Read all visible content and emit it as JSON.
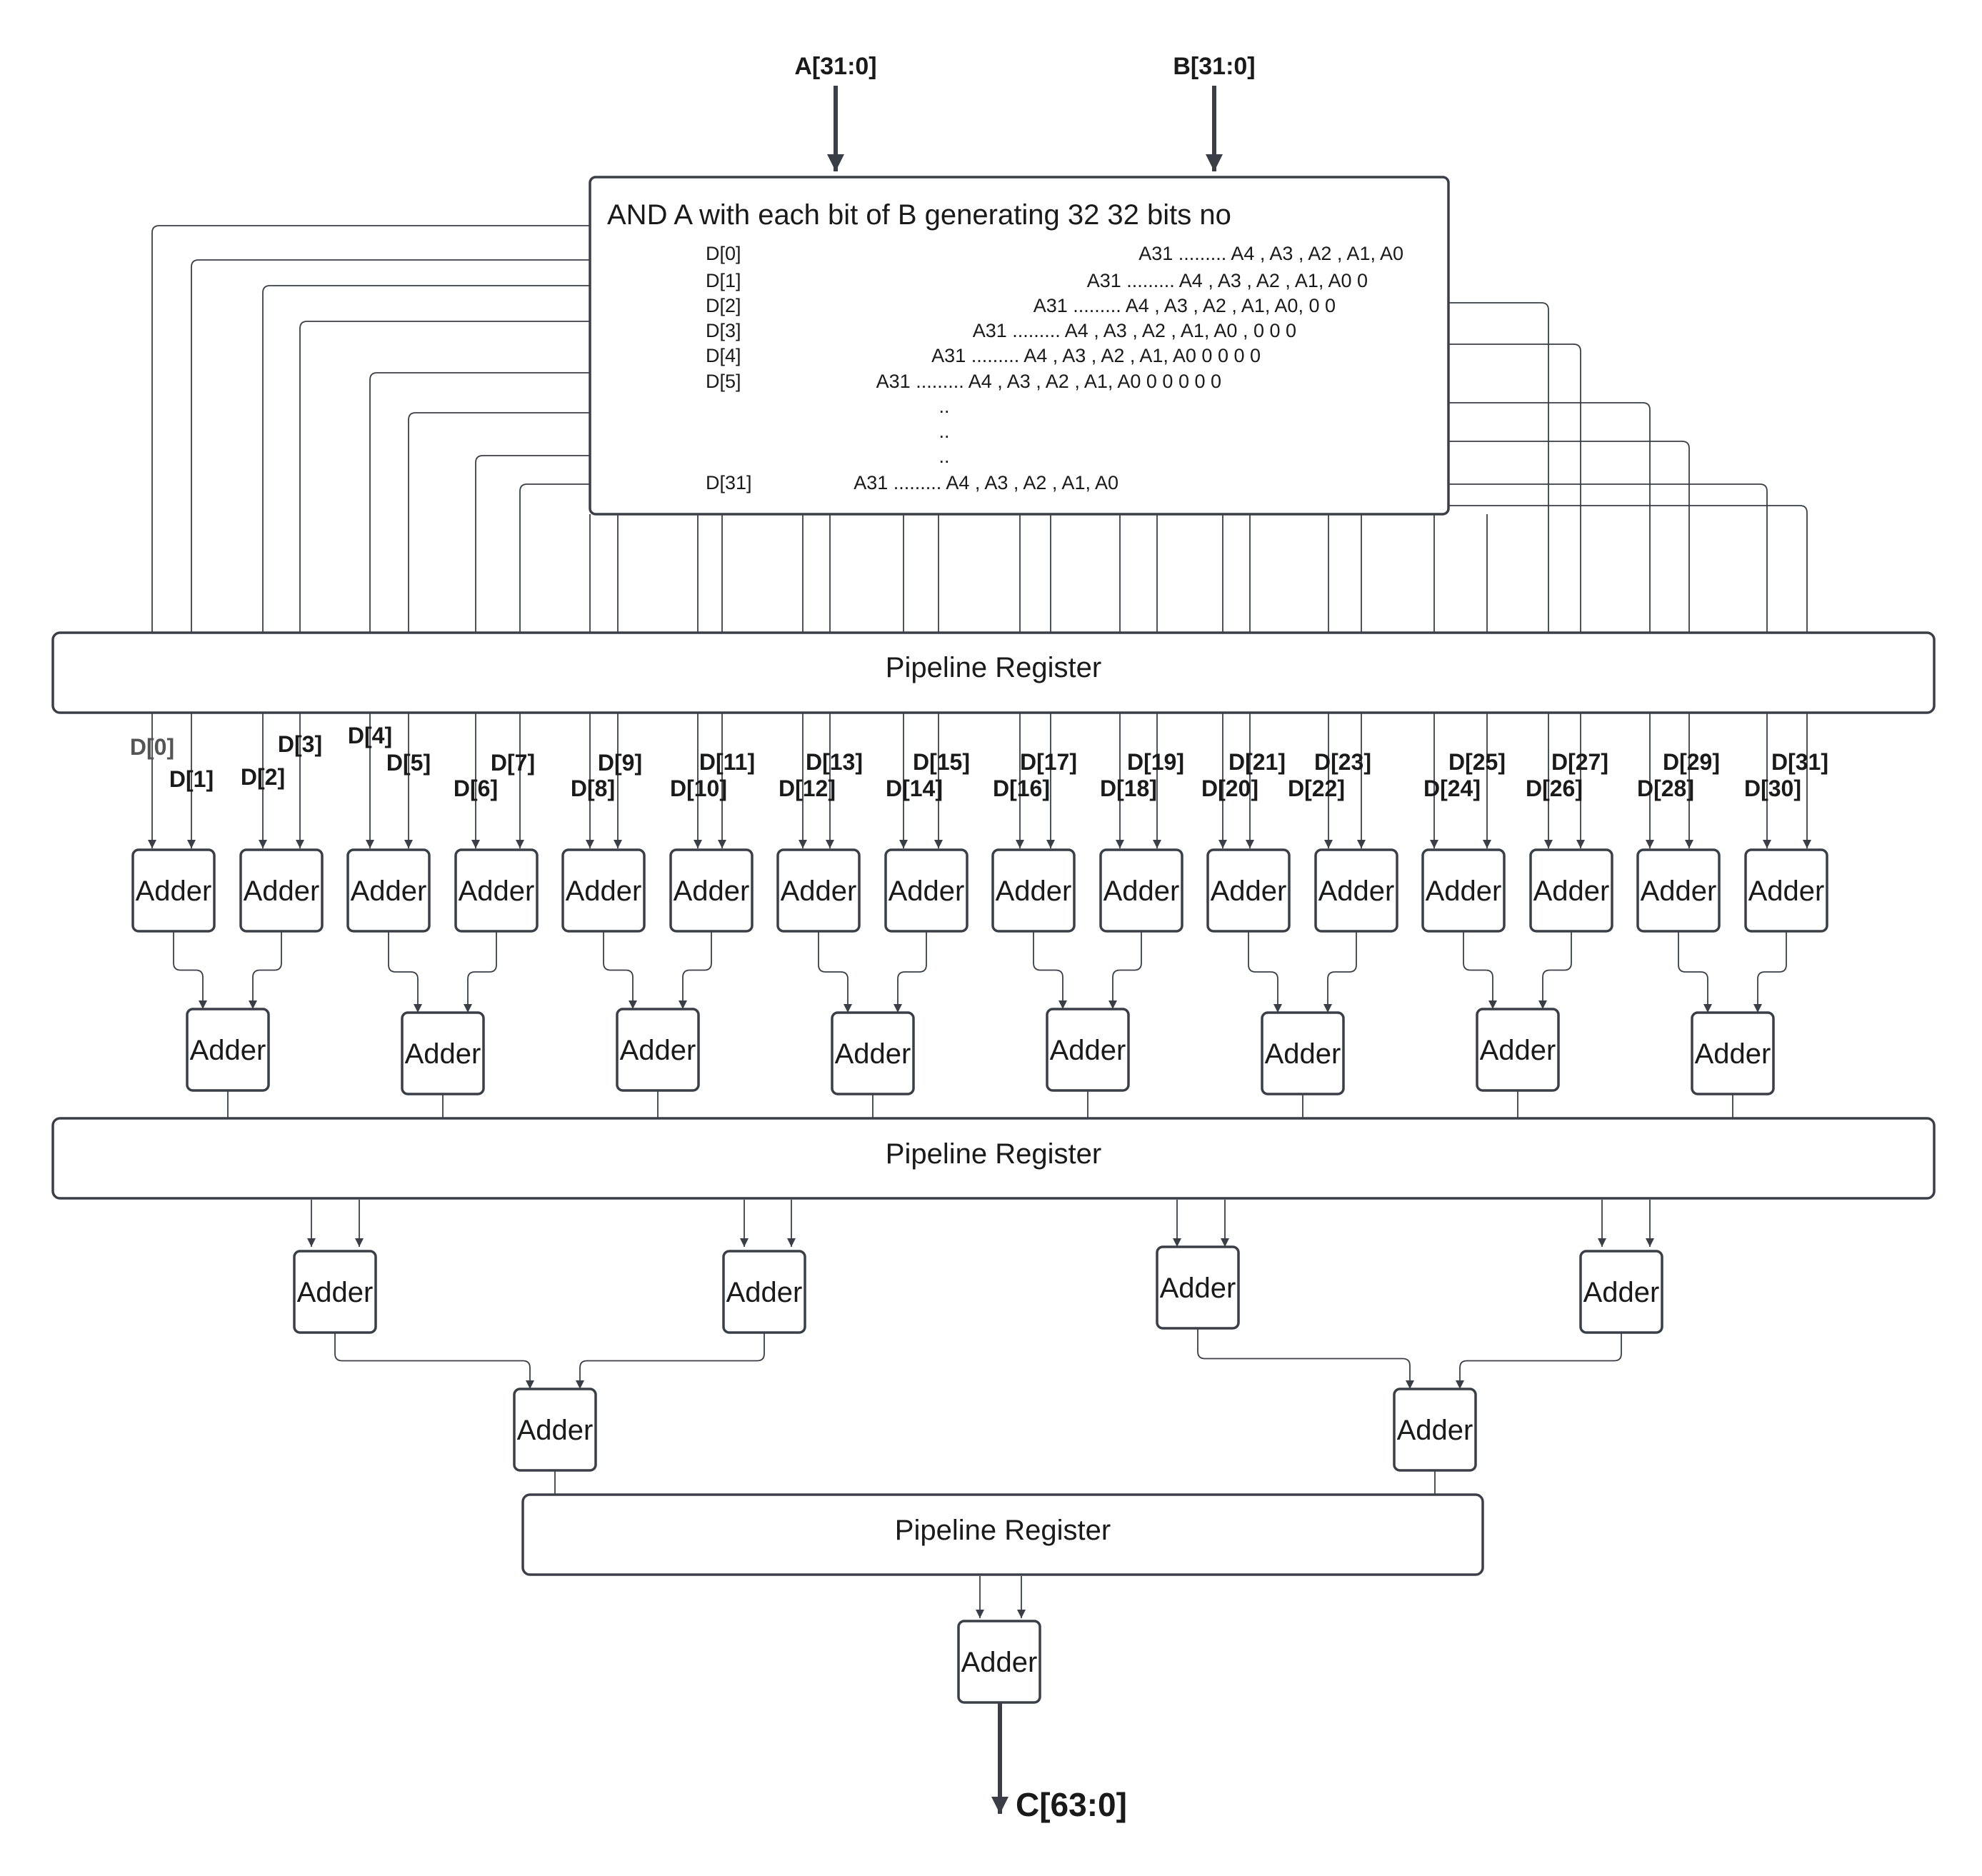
{
  "inputs": {
    "a": "A[31:0]",
    "b": "B[31:0]"
  },
  "output": "C[63:0]",
  "and_block": {
    "title": "AND A with each bit of B generating 32 32 bits no",
    "rows": [
      {
        "name": "D[0]",
        "value": "A31 ......... A4 , A3 , A2 , A1, A0"
      },
      {
        "name": "D[1]",
        "value": "A31 ......... A4 , A3 , A2 , A1, A0   0"
      },
      {
        "name": "D[2]",
        "value": "A31 ......... A4 , A3 , A2 , A1, A0,   0   0"
      },
      {
        "name": "D[3]",
        "value": "A31 ......... A4 , A3 , A2 , A1, A0 ,    0    0   0"
      },
      {
        "name": "D[4]",
        "value": "A31 ......... A4 , A3 , A2 , A1, A0    0     0    0   0"
      },
      {
        "name": "D[5]",
        "value": "A31 ......... A4 , A3 , A2 , A1, A0     0    0     0    0   0"
      },
      {
        "name": "",
        "value": ".."
      },
      {
        "name": "",
        "value": ".."
      },
      {
        "name": "",
        "value": ".."
      },
      {
        "name": "D[31]",
        "value": "A31 ......... A4 , A3 , A2 , A1, A0"
      }
    ]
  },
  "pipeline_label": "Pipeline Register",
  "adder_label": "Adder",
  "d_labels": [
    "D[0]",
    "D[1]",
    "D[2]",
    "D[3]",
    "D[4]",
    "D[5]",
    "D[6]",
    "D[7]",
    "D[8]",
    "D[9]",
    "D[10]",
    "D[11]",
    "D[12]",
    "D[13]",
    "D[14]",
    "D[15]",
    "D[16]",
    "D[17]",
    "D[18]",
    "D[19]",
    "D[20]",
    "D[21]",
    "D[22]",
    "D[23]",
    "D[24]",
    "D[25]",
    "D[26]",
    "D[27]",
    "D[28]",
    "D[29]",
    "D[30]",
    "D[31]"
  ]
}
